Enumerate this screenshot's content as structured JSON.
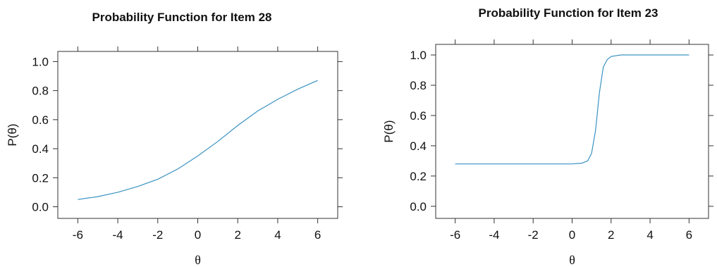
{
  "chart_data": [
    {
      "type": "line",
      "title": "Probability Function for Item 28",
      "xlabel": "θ",
      "ylabel": "P(θ)",
      "xlim": [
        -7,
        7
      ],
      "ylim": [
        -0.08,
        1.07
      ],
      "xticks": [
        "-6",
        "-4",
        "-2",
        "0",
        "2",
        "4",
        "6"
      ],
      "yticks": [
        "0.0",
        "0.2",
        "0.4",
        "0.6",
        "0.8",
        "1.0"
      ],
      "series": [
        {
          "color": "#3a93c3",
          "x": [
            -6,
            -5,
            -4,
            -3,
            -2,
            -1,
            0,
            1,
            2,
            3,
            4,
            5,
            6
          ],
          "y": [
            0.05,
            0.07,
            0.1,
            0.14,
            0.19,
            0.26,
            0.35,
            0.45,
            0.56,
            0.66,
            0.74,
            0.81,
            0.87
          ]
        }
      ]
    },
    {
      "type": "line",
      "title": "Probability Function for Item 23",
      "xlabel": "θ",
      "ylabel": "P(θ)",
      "xlim": [
        -7,
        7
      ],
      "ylim": [
        -0.08,
        1.07
      ],
      "xticks": [
        "-6",
        "-4",
        "-2",
        "0",
        "2",
        "4",
        "6"
      ],
      "yticks": [
        "0.0",
        "0.2",
        "0.4",
        "0.6",
        "0.8",
        "1.0"
      ],
      "series": [
        {
          "color": "#3a93c3",
          "x": [
            -6,
            -4,
            -2,
            0,
            0.5,
            0.8,
            1.0,
            1.2,
            1.4,
            1.6,
            1.8,
            2.0,
            2.5,
            3,
            4,
            6
          ],
          "y": [
            0.28,
            0.28,
            0.28,
            0.28,
            0.285,
            0.3,
            0.35,
            0.5,
            0.75,
            0.92,
            0.97,
            0.99,
            1.0,
            1.0,
            1.0,
            1.0
          ]
        }
      ]
    }
  ]
}
